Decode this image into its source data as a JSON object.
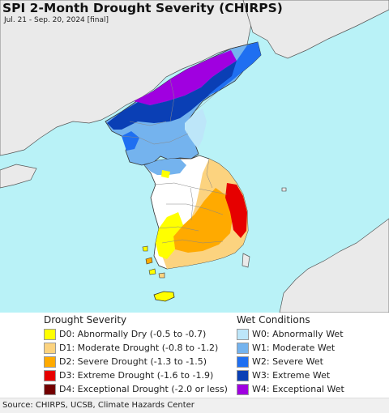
{
  "header": {
    "title": "SPI 2-Month Drought Severity (CHIRPS)",
    "subtitle": "Jul. 21 - Sep. 20, 2024 [final]"
  },
  "colors": {
    "sea": "#b9f2f7",
    "land": "#eaeaea",
    "d0": "#ffff00",
    "d1": "#fcd37f",
    "d2": "#ffaa00",
    "d3": "#e60000",
    "d4": "#730000",
    "w0": "#bde6f9",
    "w1": "#74b3ee",
    "w2": "#1f6ff1",
    "w3": "#0a3fb5",
    "w4": "#a000e0"
  },
  "legend": {
    "drought": {
      "heading": "Drought Severity",
      "items": [
        {
          "label": "D0: Abnormally Dry (-0.5 to -0.7)",
          "color": "#ffff00"
        },
        {
          "label": "D1: Moderate Drought (-0.8 to -1.2)",
          "color": "#fcd37f"
        },
        {
          "label": "D2: Severe Drought (-1.3 to -1.5)",
          "color": "#ffaa00"
        },
        {
          "label": "D3: Extreme Drought (-1.6 to -1.9)",
          "color": "#e60000"
        },
        {
          "label": "D4: Exceptional Drought (-2.0 or less)",
          "color": "#730000"
        }
      ]
    },
    "wet": {
      "heading": "Wet Conditions",
      "items": [
        {
          "label": "W0: Abnormally Wet",
          "color": "#bde6f9"
        },
        {
          "label": "W1: Moderate Wet",
          "color": "#74b3ee"
        },
        {
          "label": "W2: Severe Wet",
          "color": "#1f6ff1"
        },
        {
          "label": "W3: Extreme Wet",
          "color": "#0a3fb5"
        },
        {
          "label": "W4: Exceptional Wet",
          "color": "#a000e0"
        }
      ]
    }
  },
  "footer": {
    "source": "Source: CHIRPS, UCSB, Climate Hazards Center"
  }
}
